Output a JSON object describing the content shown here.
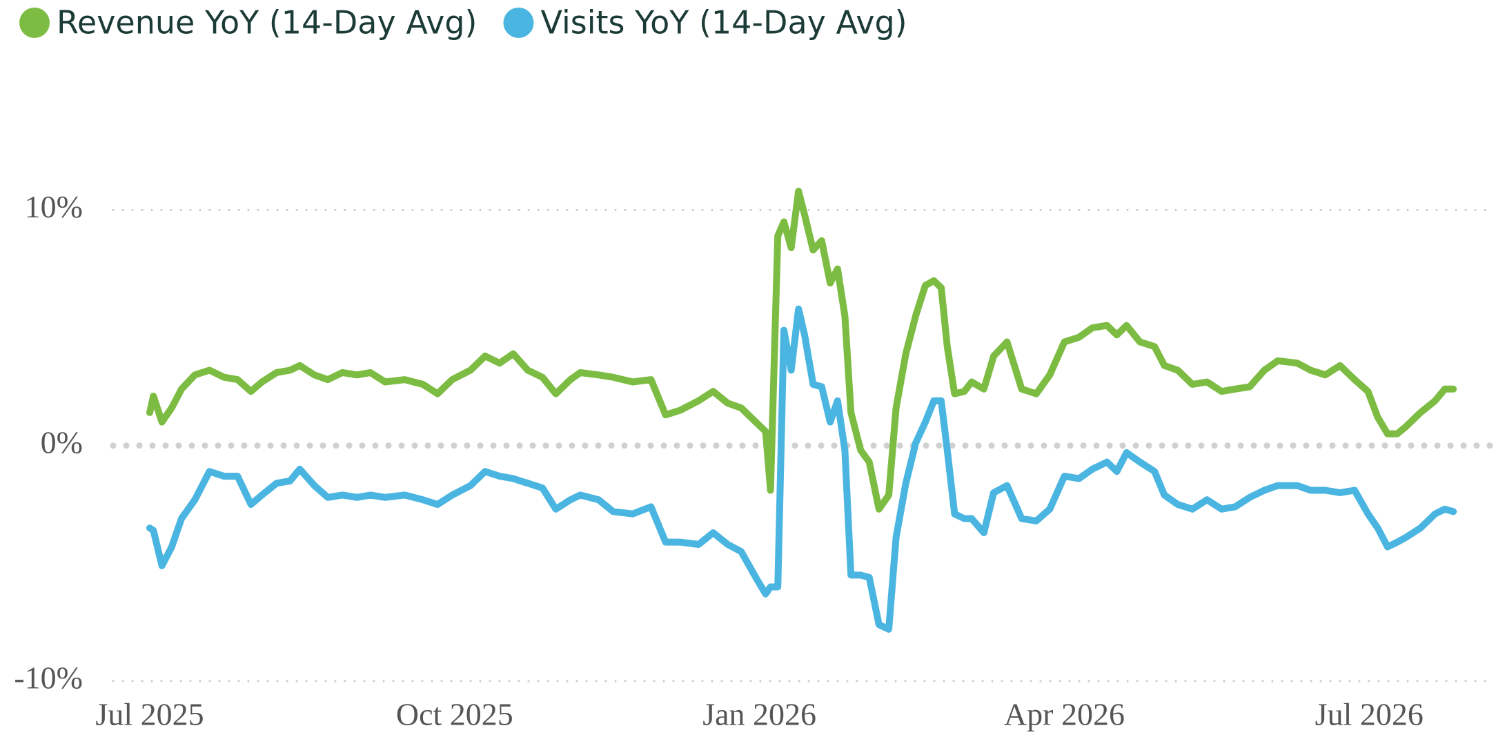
{
  "chart_data": {
    "type": "line",
    "x": [
      2025.5,
      2025.503,
      2025.51,
      2025.518,
      2025.526,
      2025.537,
      2025.549,
      2025.561,
      2025.572,
      2025.583,
      2025.592,
      2025.604,
      2025.615,
      2025.623,
      2025.635,
      2025.646,
      2025.658,
      2025.67,
      2025.681,
      2025.693,
      2025.709,
      2025.724,
      2025.736,
      2025.748,
      2025.763,
      2025.775,
      2025.787,
      2025.798,
      2025.81,
      2025.822,
      2025.833,
      2025.845,
      2025.853,
      2025.868,
      2025.88,
      2025.896,
      2025.911,
      2025.923,
      2025.935,
      2025.95,
      2025.962,
      2025.974,
      2025.985,
      2025.997,
      2026.005,
      2026.009,
      2026.015,
      2026.02,
      2026.026,
      2026.032,
      2026.037,
      2026.044,
      2026.051,
      2026.058,
      2026.064,
      2026.07,
      2026.075,
      2026.083,
      2026.09,
      2026.098,
      2026.106,
      2026.112,
      2026.12,
      2026.128,
      2026.136,
      2026.143,
      2026.149,
      2026.154,
      2026.16,
      2026.168,
      2026.174,
      2026.184,
      2026.192,
      2026.203,
      2026.215,
      2026.227,
      2026.238,
      2026.25,
      2026.262,
      2026.273,
      2026.285,
      2026.293,
      2026.301,
      2026.312,
      2026.324,
      2026.332,
      2026.343,
      2026.355,
      2026.367,
      2026.379,
      2026.39,
      2026.402,
      2026.414,
      2026.425,
      2026.441,
      2026.452,
      2026.464,
      2026.476,
      2026.488,
      2026.499,
      2026.507,
      2026.515,
      2026.523,
      2026.53,
      2026.542,
      2026.554,
      2026.562,
      2026.569
    ],
    "series": [
      {
        "name": "Revenue YoY (14-Day Avg)",
        "color": "#7cbc42",
        "values": [
          1.4,
          2.1,
          1.0,
          1.6,
          2.4,
          3.0,
          3.2,
          2.9,
          2.8,
          2.3,
          2.7,
          3.1,
          3.2,
          3.4,
          3.0,
          2.8,
          3.1,
          3.0,
          3.1,
          2.7,
          2.8,
          2.6,
          2.2,
          2.8,
          3.2,
          3.8,
          3.5,
          3.9,
          3.2,
          2.9,
          2.2,
          2.8,
          3.1,
          3.0,
          2.9,
          2.7,
          2.8,
          1.3,
          1.5,
          1.9,
          2.3,
          1.8,
          1.6,
          1.0,
          0.6,
          -1.9,
          8.9,
          9.5,
          8.4,
          10.8,
          9.8,
          8.3,
          8.7,
          6.9,
          7.5,
          5.5,
          1.4,
          -0.2,
          -0.7,
          -2.7,
          -2.1,
          1.6,
          3.9,
          5.5,
          6.8,
          7.0,
          6.7,
          4.2,
          2.2,
          2.3,
          2.7,
          2.4,
          3.8,
          4.4,
          2.4,
          2.2,
          3.0,
          4.4,
          4.6,
          5.0,
          5.1,
          4.7,
          5.1,
          4.4,
          4.2,
          3.4,
          3.2,
          2.6,
          2.7,
          2.3,
          2.4,
          2.5,
          3.2,
          3.6,
          3.5,
          3.2,
          3.0,
          3.4,
          2.8,
          2.3,
          1.2,
          0.5,
          0.5,
          0.8,
          1.4,
          1.9,
          2.4,
          2.4
        ]
      },
      {
        "name": "Visits YoY (14-Day Avg)",
        "color": "#4ab5e0",
        "values": [
          -3.5,
          -3.6,
          -5.1,
          -4.3,
          -3.1,
          -2.3,
          -1.1,
          -1.3,
          -1.3,
          -2.5,
          -2.1,
          -1.6,
          -1.5,
          -1.0,
          -1.7,
          -2.2,
          -2.1,
          -2.2,
          -2.1,
          -2.2,
          -2.1,
          -2.3,
          -2.5,
          -2.1,
          -1.7,
          -1.1,
          -1.3,
          -1.4,
          -1.6,
          -1.8,
          -2.7,
          -2.3,
          -2.1,
          -2.3,
          -2.8,
          -2.9,
          -2.6,
          -4.1,
          -4.1,
          -4.2,
          -3.7,
          -4.2,
          -4.5,
          -5.6,
          -6.3,
          -6.0,
          -6.0,
          4.9,
          3.2,
          5.8,
          4.7,
          2.6,
          2.5,
          1.0,
          1.9,
          -0.2,
          -5.5,
          -5.5,
          -5.6,
          -7.6,
          -7.8,
          -3.9,
          -1.6,
          0.1,
          1.0,
          1.9,
          1.9,
          -0.2,
          -2.9,
          -3.1,
          -3.1,
          -3.7,
          -2.0,
          -1.7,
          -3.1,
          -3.2,
          -2.7,
          -1.3,
          -1.4,
          -1.0,
          -0.7,
          -1.1,
          -0.3,
          -0.7,
          -1.1,
          -2.1,
          -2.5,
          -2.7,
          -2.3,
          -2.7,
          -2.6,
          -2.2,
          -1.9,
          -1.7,
          -1.7,
          -1.9,
          -1.9,
          -2.0,
          -1.9,
          -2.9,
          -3.5,
          -4.3,
          -4.1,
          -3.9,
          -3.5,
          -2.9,
          -2.7,
          -2.8
        ]
      }
    ],
    "xlim": [
      2025.47,
      2026.6
    ],
    "xticks": [
      {
        "value": 2025.5,
        "label": "Jul 2025"
      },
      {
        "value": 2025.75,
        "label": "Oct 2025"
      },
      {
        "value": 2026.0,
        "label": "Jan 2026"
      },
      {
        "value": 2026.25,
        "label": "Apr 2026"
      },
      {
        "value": 2026.5,
        "label": "Jul 2026"
      }
    ],
    "ylim": [
      -10,
      13
    ],
    "yticks": [
      {
        "value": -10,
        "label": "-10%"
      },
      {
        "value": 0,
        "label": "0%"
      },
      {
        "value": 10,
        "label": "10%"
      }
    ],
    "grid": true
  }
}
